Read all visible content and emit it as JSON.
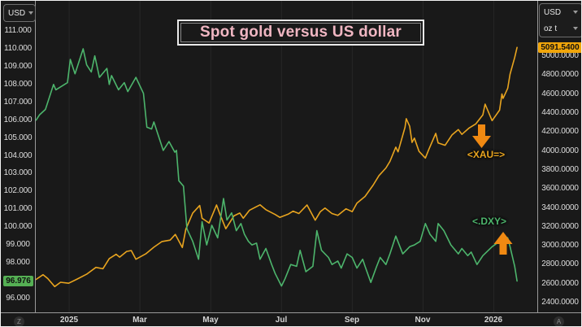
{
  "title": {
    "text": "Spot gold versus US dollar"
  },
  "buttons": {
    "zoom_label": "Z",
    "annotation_label": "A"
  },
  "left_axis": {
    "unit_selector": "USD",
    "last_value": "96.976",
    "ticks": [
      {
        "v": 111,
        "label": "111.000"
      },
      {
        "v": 110,
        "label": "110.000"
      },
      {
        "v": 109,
        "label": "109.000"
      },
      {
        "v": 108,
        "label": "108.000"
      },
      {
        "v": 107,
        "label": "107.000"
      },
      {
        "v": 106,
        "label": "106.000"
      },
      {
        "v": 105,
        "label": "105.000"
      },
      {
        "v": 104,
        "label": "104.000"
      },
      {
        "v": 103,
        "label": "103.000"
      },
      {
        "v": 102,
        "label": "102.000"
      },
      {
        "v": 101,
        "label": "101.000"
      },
      {
        "v": 100,
        "label": "100.000"
      },
      {
        "v": 99,
        "label": "99.000"
      },
      {
        "v": 98,
        "label": "98.000"
      },
      {
        "v": 96,
        "label": "96.000"
      }
    ]
  },
  "right_axis": {
    "unit_selector": "USD",
    "unit2_selector": "oz t",
    "last_value": "5091.5400",
    "ticks": [
      {
        "v": 5000,
        "label": "5000.0000"
      },
      {
        "v": 4800,
        "label": "4800.0000"
      },
      {
        "v": 4600,
        "label": "4600.0000"
      },
      {
        "v": 4400,
        "label": "4400.0000"
      },
      {
        "v": 4200,
        "label": "4200.0000"
      },
      {
        "v": 4000,
        "label": "4000.0000"
      },
      {
        "v": 3800,
        "label": "3800.0000"
      },
      {
        "v": 3600,
        "label": "3600.0000"
      },
      {
        "v": 3400,
        "label": "3400.0000"
      },
      {
        "v": 3200,
        "label": "3200.0000"
      },
      {
        "v": 3000,
        "label": "3000.0000"
      },
      {
        "v": 2800,
        "label": "2800.0000"
      },
      {
        "v": 2600,
        "label": "2600.0000"
      },
      {
        "v": 2400,
        "label": "2400.0000"
      }
    ]
  },
  "x_axis": {
    "labels": [
      {
        "t": 0,
        "label": "2025"
      },
      {
        "t": 2,
        "label": "Mar"
      },
      {
        "t": 4,
        "label": "May"
      },
      {
        "t": 6,
        "label": "Jul"
      },
      {
        "t": 8,
        "label": "Sep"
      },
      {
        "t": 10,
        "label": "Nov"
      },
      {
        "t": 12,
        "label": "2026"
      }
    ]
  },
  "annotations": {
    "xau": "<XAU=>",
    "dxy": "<.DXY>"
  },
  "colors": {
    "gold_line": "#e8a41f",
    "green_line": "#4db56c",
    "gold_box": "#f0a50a",
    "green_box": "#55b054",
    "title_text": "#f0b6c2",
    "arrow": "#f08912",
    "grid": "#272727"
  },
  "chart_data": {
    "type": "line",
    "title": "Spot gold versus US dollar",
    "legend": "labels drawn on chart as <XAU=> (gold, right axis) and <.DXY> (green, left axis)",
    "grid": "vertical gridlines at labeled months only",
    "axes": {
      "x": {
        "start": "2024-12-02",
        "end": "2026-02-08",
        "tick_dates": [
          "2025-01-01",
          "2025-03-01",
          "2025-05-01",
          "2025-07-01",
          "2025-09-01",
          "2025-11-01",
          "2026-01-01"
        ]
      },
      "left": {
        "top": 112.69,
        "bottom": 95.22,
        "unit": "USD",
        "tick_step": 1
      },
      "right": {
        "top": 5583,
        "bottom": 2298,
        "unit": "USD / oz t",
        "tick_step": 200
      }
    },
    "series": [
      {
        "name": "XAU= spot gold",
        "axis": "right",
        "color": "#e8a41f",
        "last_value": 5091.54,
        "points": [
          [
            "2024-12-03",
            2645
          ],
          [
            "2024-12-09",
            2695
          ],
          [
            "2024-12-13",
            2655
          ],
          [
            "2024-12-19",
            2570
          ],
          [
            "2024-12-24",
            2615
          ],
          [
            "2024-12-31",
            2605
          ],
          [
            "2025-01-08",
            2650
          ],
          [
            "2025-01-16",
            2700
          ],
          [
            "2025-01-24",
            2772
          ],
          [
            "2025-01-30",
            2758
          ],
          [
            "2025-02-05",
            2865
          ],
          [
            "2025-02-11",
            2910
          ],
          [
            "2025-02-14",
            2880
          ],
          [
            "2025-02-20",
            2940
          ],
          [
            "2025-02-24",
            2950
          ],
          [
            "2025-02-28",
            2858
          ],
          [
            "2025-03-06",
            2915
          ],
          [
            "2025-03-13",
            2985
          ],
          [
            "2025-03-20",
            3045
          ],
          [
            "2025-03-27",
            3060
          ],
          [
            "2025-04-01",
            3120
          ],
          [
            "2025-04-07",
            2982
          ],
          [
            "2025-04-10",
            3175
          ],
          [
            "2025-04-16",
            3345
          ],
          [
            "2025-04-22",
            3425
          ],
          [
            "2025-04-24",
            3290
          ],
          [
            "2025-04-30",
            3240
          ],
          [
            "2025-05-06",
            3430
          ],
          [
            "2025-05-09",
            3330
          ],
          [
            "2025-05-14",
            3180
          ],
          [
            "2025-05-21",
            3315
          ],
          [
            "2025-05-26",
            3345
          ],
          [
            "2025-05-29",
            3290
          ],
          [
            "2025-06-04",
            3375
          ],
          [
            "2025-06-13",
            3432
          ],
          [
            "2025-06-18",
            3380
          ],
          [
            "2025-06-26",
            3330
          ],
          [
            "2025-06-30",
            3300
          ],
          [
            "2025-07-07",
            3335
          ],
          [
            "2025-07-11",
            3365
          ],
          [
            "2025-07-16",
            3340
          ],
          [
            "2025-07-23",
            3430
          ],
          [
            "2025-07-30",
            3270
          ],
          [
            "2025-08-04",
            3360
          ],
          [
            "2025-08-08",
            3398
          ],
          [
            "2025-08-14",
            3340
          ],
          [
            "2025-08-19",
            3320
          ],
          [
            "2025-08-26",
            3390
          ],
          [
            "2025-09-01",
            3360
          ],
          [
            "2025-09-05",
            3450
          ],
          [
            "2025-09-12",
            3520
          ],
          [
            "2025-09-19",
            3640
          ],
          [
            "2025-09-24",
            3740
          ],
          [
            "2025-09-30",
            3820
          ],
          [
            "2025-10-03",
            3890
          ],
          [
            "2025-10-08",
            4040
          ],
          [
            "2025-10-10",
            3990
          ],
          [
            "2025-10-16",
            4250
          ],
          [
            "2025-10-17",
            4340
          ],
          [
            "2025-10-20",
            4260
          ],
          [
            "2025-10-22",
            4090
          ],
          [
            "2025-10-24",
            4135
          ],
          [
            "2025-10-28",
            3995
          ],
          [
            "2025-11-03",
            3925
          ],
          [
            "2025-11-06",
            4015
          ],
          [
            "2025-11-12",
            4185
          ],
          [
            "2025-11-14",
            4085
          ],
          [
            "2025-11-20",
            4060
          ],
          [
            "2025-11-26",
            4170
          ],
          [
            "2025-12-01",
            4225
          ],
          [
            "2025-12-04",
            4175
          ],
          [
            "2025-12-10",
            4240
          ],
          [
            "2025-12-16",
            4285
          ],
          [
            "2025-12-22",
            4380
          ],
          [
            "2025-12-24",
            4494
          ],
          [
            "2025-12-30",
            4320
          ],
          [
            "2026-01-06",
            4430
          ],
          [
            "2026-01-08",
            4600
          ],
          [
            "2026-01-09",
            4555
          ],
          [
            "2026-01-13",
            4660
          ],
          [
            "2026-01-15",
            4810
          ],
          [
            "2026-01-19",
            4985
          ],
          [
            "2026-01-21",
            5091.54
          ]
        ]
      },
      {
        "name": ".DXY US dollar index",
        "axis": "left",
        "color": "#4db56c",
        "last_value": 96.976,
        "points": [
          [
            "2024-12-03",
            106.0
          ],
          [
            "2024-12-06",
            106.3
          ],
          [
            "2024-12-11",
            106.6
          ],
          [
            "2024-12-18",
            108.0
          ],
          [
            "2024-12-20",
            107.7
          ],
          [
            "2024-12-30",
            108.1
          ],
          [
            "2025-01-02",
            109.4
          ],
          [
            "2025-01-06",
            108.6
          ],
          [
            "2025-01-13",
            110.0
          ],
          [
            "2025-01-16",
            109.1
          ],
          [
            "2025-01-20",
            108.7
          ],
          [
            "2025-01-23",
            109.6
          ],
          [
            "2025-01-27",
            108.4
          ],
          [
            "2025-02-03",
            108.9
          ],
          [
            "2025-02-05",
            108.0
          ],
          [
            "2025-02-07",
            108.5
          ],
          [
            "2025-02-13",
            107.7
          ],
          [
            "2025-02-18",
            108.1
          ],
          [
            "2025-02-21",
            107.6
          ],
          [
            "2025-02-28",
            108.4
          ],
          [
            "2025-03-04",
            107.5
          ],
          [
            "2025-03-07",
            105.6
          ],
          [
            "2025-03-11",
            105.5
          ],
          [
            "2025-03-13",
            105.9
          ],
          [
            "2025-03-18",
            104.9
          ],
          [
            "2025-03-21",
            104.3
          ],
          [
            "2025-03-26",
            104.8
          ],
          [
            "2025-03-31",
            104.2
          ],
          [
            "2025-04-02",
            104.3
          ],
          [
            "2025-04-04",
            102.6
          ],
          [
            "2025-04-08",
            102.3
          ],
          [
            "2025-04-11",
            99.9
          ],
          [
            "2025-04-16",
            99.2
          ],
          [
            "2025-04-21",
            98.2
          ],
          [
            "2025-04-24",
            100.3
          ],
          [
            "2025-04-28",
            99.0
          ],
          [
            "2025-05-02",
            100.1
          ],
          [
            "2025-05-07",
            99.4
          ],
          [
            "2025-05-12",
            101.6
          ],
          [
            "2025-05-15",
            100.4
          ],
          [
            "2025-05-19",
            100.8
          ],
          [
            "2025-05-23",
            99.8
          ],
          [
            "2025-05-27",
            100.2
          ],
          [
            "2025-05-30",
            99.6
          ],
          [
            "2025-06-03",
            99.2
          ],
          [
            "2025-06-06",
            99.0
          ],
          [
            "2025-06-10",
            99.1
          ],
          [
            "2025-06-13",
            98.2
          ],
          [
            "2025-06-18",
            98.8
          ],
          [
            "2025-06-23",
            97.9
          ],
          [
            "2025-06-26",
            97.4
          ],
          [
            "2025-07-01",
            96.7
          ],
          [
            "2025-07-04",
            97.1
          ],
          [
            "2025-07-09",
            97.9
          ],
          [
            "2025-07-14",
            97.8
          ],
          [
            "2025-07-17",
            98.7
          ],
          [
            "2025-07-22",
            97.5
          ],
          [
            "2025-07-28",
            97.8
          ],
          [
            "2025-08-01",
            99.8
          ],
          [
            "2025-08-05",
            98.7
          ],
          [
            "2025-08-11",
            98.3
          ],
          [
            "2025-08-14",
            97.9
          ],
          [
            "2025-08-19",
            98.1
          ],
          [
            "2025-08-22",
            97.7
          ],
          [
            "2025-08-27",
            98.5
          ],
          [
            "2025-09-01",
            98.3
          ],
          [
            "2025-09-05",
            97.7
          ],
          [
            "2025-09-10",
            98.2
          ],
          [
            "2025-09-12",
            97.8
          ],
          [
            "2025-09-17",
            96.9
          ],
          [
            "2025-09-22",
            97.8
          ],
          [
            "2025-09-25",
            98.3
          ],
          [
            "2025-09-30",
            97.9
          ],
          [
            "2025-10-03",
            98.5
          ],
          [
            "2025-10-08",
            99.5
          ],
          [
            "2025-10-14",
            98.5
          ],
          [
            "2025-10-20",
            98.9
          ],
          [
            "2025-10-24",
            99.0
          ],
          [
            "2025-10-29",
            99.2
          ],
          [
            "2025-11-03",
            100.2
          ],
          [
            "2025-11-07",
            99.6
          ],
          [
            "2025-11-12",
            99.2
          ],
          [
            "2025-11-14",
            100.2
          ],
          [
            "2025-11-19",
            99.8
          ],
          [
            "2025-11-25",
            99.0
          ],
          [
            "2025-12-01",
            98.5
          ],
          [
            "2025-12-04",
            98.8
          ],
          [
            "2025-12-09",
            98.4
          ],
          [
            "2025-12-12",
            98.6
          ],
          [
            "2025-12-17",
            97.9
          ],
          [
            "2025-12-22",
            98.4
          ],
          [
            "2025-12-30",
            98.9
          ],
          [
            "2026-01-06",
            99.2
          ],
          [
            "2026-01-09",
            99.5
          ],
          [
            "2026-01-13",
            99.4
          ],
          [
            "2026-01-15",
            98.9
          ],
          [
            "2026-01-19",
            97.8
          ],
          [
            "2026-01-21",
            96.976
          ]
        ]
      }
    ]
  }
}
